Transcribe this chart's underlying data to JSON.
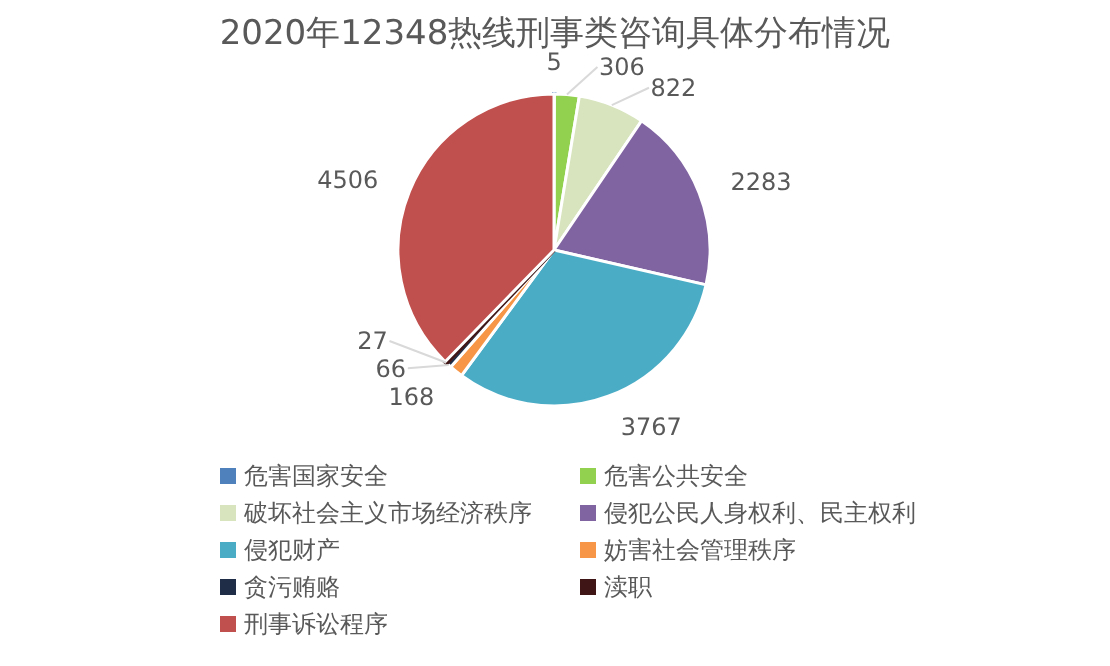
{
  "chart_data": {
    "type": "pie",
    "title": "2020年12348热线刑事类咨询具体分布情况",
    "categories": [
      "危害国家安全",
      "危害公共安全",
      "破坏社会主义市场经济秩序",
      "侵犯公民人身权利、民主权利",
      "侵犯财产",
      "妨害社会管理秩序",
      "贪污贿赂",
      "渎职",
      "刑事诉讼程序"
    ],
    "values": [
      5,
      306,
      822,
      2283,
      3767,
      168,
      66,
      27,
      4506
    ],
    "colors": [
      "#4f81bd",
      "#92d050",
      "#d7e4bd",
      "#8064a2",
      "#4bacc6",
      "#f79646",
      "#1f2d46",
      "#3f1515",
      "#c0504d"
    ],
    "data_labels": true,
    "legend": "bottom"
  }
}
